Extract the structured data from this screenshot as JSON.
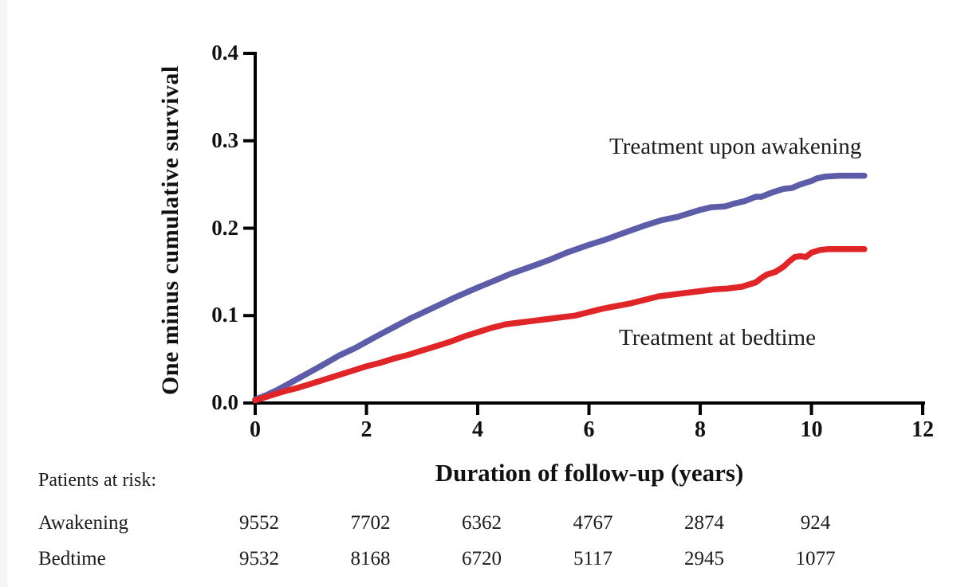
{
  "chart_data": {
    "type": "line",
    "title": "",
    "xlabel": "Duration of follow-up (years)",
    "ylabel": "One minus cumulative survival",
    "xlim": [
      0,
      12
    ],
    "ylim": [
      0,
      0.4
    ],
    "grid": false,
    "legend_position": "inline-annotations",
    "xticks": [
      0,
      2,
      4,
      6,
      8,
      10,
      12
    ],
    "xtick_labels": [
      "0",
      "2",
      "4",
      "6",
      "8",
      "10",
      "12"
    ],
    "yticks": [
      0.0,
      0.1,
      0.2,
      0.3,
      0.4
    ],
    "ytick_labels": [
      "0.0",
      "0.1",
      "0.2",
      "0.3",
      "0.4"
    ],
    "axis_color": "#000000",
    "series": [
      {
        "name": "Treatment upon awakening",
        "color": "#5c5ca8",
        "points": [
          [
            0,
            0.004
          ],
          [
            0.2,
            0.009
          ],
          [
            0.4,
            0.015
          ],
          [
            0.6,
            0.022
          ],
          [
            0.8,
            0.029
          ],
          [
            1,
            0.036
          ],
          [
            1.2,
            0.043
          ],
          [
            1.5,
            0.054
          ],
          [
            1.8,
            0.063
          ],
          [
            2,
            0.07
          ],
          [
            2.2,
            0.077
          ],
          [
            2.5,
            0.087
          ],
          [
            2.8,
            0.097
          ],
          [
            3,
            0.103
          ],
          [
            3.3,
            0.112
          ],
          [
            3.6,
            0.121
          ],
          [
            4,
            0.132
          ],
          [
            4.3,
            0.14
          ],
          [
            4.6,
            0.148
          ],
          [
            5,
            0.157
          ],
          [
            5.3,
            0.164
          ],
          [
            5.6,
            0.172
          ],
          [
            6,
            0.181
          ],
          [
            6.3,
            0.187
          ],
          [
            6.6,
            0.194
          ],
          [
            7,
            0.203
          ],
          [
            7.3,
            0.209
          ],
          [
            7.6,
            0.213
          ],
          [
            8,
            0.221
          ],
          [
            8.2,
            0.224
          ],
          [
            8.45,
            0.225
          ],
          [
            8.6,
            0.228
          ],
          [
            8.8,
            0.231
          ],
          [
            9,
            0.236
          ],
          [
            9.1,
            0.236
          ],
          [
            9.3,
            0.241
          ],
          [
            9.5,
            0.245
          ],
          [
            9.65,
            0.246
          ],
          [
            9.8,
            0.25
          ],
          [
            10,
            0.254
          ],
          [
            10.1,
            0.257
          ],
          [
            10.25,
            0.259
          ],
          [
            10.5,
            0.26
          ],
          [
            10.95,
            0.26
          ]
        ]
      },
      {
        "name": "Treatment at bedtime",
        "color": "#e02529",
        "points": [
          [
            0,
            0.003
          ],
          [
            0.25,
            0.008
          ],
          [
            0.5,
            0.013
          ],
          [
            0.75,
            0.017
          ],
          [
            1,
            0.022
          ],
          [
            1.25,
            0.027
          ],
          [
            1.5,
            0.032
          ],
          [
            1.75,
            0.037
          ],
          [
            2,
            0.042
          ],
          [
            2.25,
            0.046
          ],
          [
            2.5,
            0.051
          ],
          [
            2.75,
            0.055
          ],
          [
            3,
            0.06
          ],
          [
            3.25,
            0.065
          ],
          [
            3.5,
            0.07
          ],
          [
            3.75,
            0.076
          ],
          [
            4,
            0.081
          ],
          [
            4.25,
            0.086
          ],
          [
            4.5,
            0.09
          ],
          [
            4.75,
            0.092
          ],
          [
            5,
            0.094
          ],
          [
            5.25,
            0.096
          ],
          [
            5.5,
            0.098
          ],
          [
            5.75,
            0.1
          ],
          [
            6,
            0.104
          ],
          [
            6.25,
            0.108
          ],
          [
            6.5,
            0.111
          ],
          [
            6.75,
            0.114
          ],
          [
            7,
            0.118
          ],
          [
            7.25,
            0.122
          ],
          [
            7.5,
            0.124
          ],
          [
            7.75,
            0.126
          ],
          [
            8,
            0.128
          ],
          [
            8.25,
            0.13
          ],
          [
            8.5,
            0.131
          ],
          [
            8.75,
            0.133
          ],
          [
            9,
            0.138
          ],
          [
            9.1,
            0.143
          ],
          [
            9.2,
            0.147
          ],
          [
            9.35,
            0.15
          ],
          [
            9.5,
            0.156
          ],
          [
            9.6,
            0.162
          ],
          [
            9.7,
            0.167
          ],
          [
            9.8,
            0.168
          ],
          [
            9.9,
            0.167
          ],
          [
            10,
            0.172
          ],
          [
            10.15,
            0.175
          ],
          [
            10.3,
            0.176
          ],
          [
            10.95,
            0.176
          ]
        ]
      }
    ],
    "at_risk": {
      "header": "Patients at risk:",
      "col_years": [
        0,
        2,
        4,
        6,
        8,
        10
      ],
      "rows": [
        {
          "label": "Awakening",
          "values": [
            "9552",
            "7702",
            "6362",
            "4767",
            "2874",
            "924"
          ]
        },
        {
          "label": "Bedtime",
          "values": [
            "9532",
            "8168",
            "6720",
            "5117",
            "2945",
            "1077"
          ]
        }
      ]
    }
  }
}
